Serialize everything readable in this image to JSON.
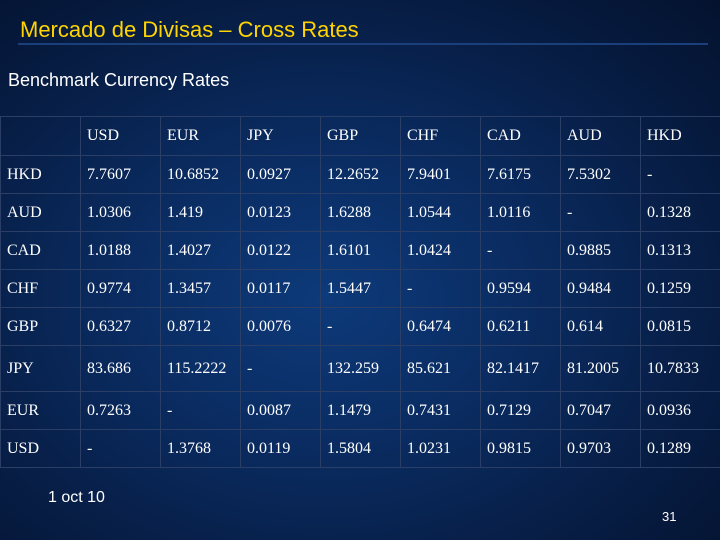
{
  "title": "Mercado de Divisas – Cross Rates",
  "subtitle": "Benchmark Currency Rates",
  "table": {
    "corner": "",
    "columns": [
      "USD",
      "EUR",
      "JPY",
      "GBP",
      "CHF",
      "CAD",
      "AUD",
      "HKD"
    ],
    "rows": [
      {
        "label": "HKD",
        "cells": [
          "7.7607",
          "10.6852",
          "0.0927",
          "12.2652",
          "7.9401",
          "7.6175",
          "7.5302",
          "-"
        ]
      },
      {
        "label": "AUD",
        "cells": [
          "1.0306",
          "1.419",
          "0.0123",
          "1.6288",
          "1.0544",
          "1.0116",
          "-",
          "0.1328"
        ]
      },
      {
        "label": "CAD",
        "cells": [
          "1.0188",
          "1.4027",
          "0.0122",
          "1.6101",
          "1.0424",
          "-",
          "0.9885",
          "0.1313"
        ]
      },
      {
        "label": "CHF",
        "cells": [
          "0.9774",
          "1.3457",
          "0.0117",
          "1.5447",
          "-",
          "0.9594",
          "0.9484",
          "0.1259"
        ]
      },
      {
        "label": "GBP",
        "cells": [
          "0.6327",
          "0.8712",
          "0.0076",
          "-",
          "0.6474",
          "0.6211",
          "0.614",
          "0.0815"
        ]
      },
      {
        "label": "JPY",
        "cells": [
          "83.686",
          "115.2222",
          "-",
          "132.259",
          "85.621",
          "82.1417",
          "81.2005",
          "10.7833"
        ]
      },
      {
        "label": "EUR",
        "cells": [
          "0.7263",
          "-",
          "0.0087",
          "1.1479",
          "0.7431",
          "0.7129",
          "0.7047",
          "0.0936"
        ]
      },
      {
        "label": "USD",
        "cells": [
          "-",
          "1.3768",
          "0.0119",
          "1.5804",
          "1.0231",
          "0.9815",
          "0.9703",
          "0.1289"
        ]
      }
    ]
  },
  "footer": {
    "date": "1 oct 10",
    "page_number": "31"
  },
  "colors": {
    "title": "#ffd400",
    "text": "#ffffff",
    "background": "#0a2c62",
    "grid": "#2a3e66"
  }
}
